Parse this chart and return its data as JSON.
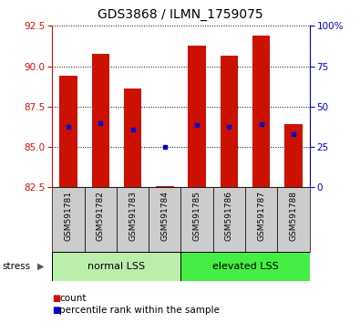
{
  "title": "GDS3868 / ILMN_1759075",
  "samples": [
    "GSM591781",
    "GSM591782",
    "GSM591783",
    "GSM591784",
    "GSM591785",
    "GSM591786",
    "GSM591787",
    "GSM591788"
  ],
  "bar_tops": [
    89.4,
    90.75,
    88.6,
    82.56,
    91.3,
    90.65,
    91.9,
    86.4
  ],
  "bar_bottom": 82.5,
  "percentile_values": [
    86.25,
    86.5,
    86.1,
    85.0,
    86.35,
    86.25,
    86.4,
    85.8
  ],
  "ylim_left": [
    82.5,
    92.5
  ],
  "yticks_left": [
    82.5,
    85.0,
    87.5,
    90.0,
    92.5
  ],
  "yticks_right_vals": [
    0,
    25,
    50,
    75,
    100
  ],
  "yticks_right_labels": [
    "0",
    "25",
    "50",
    "75",
    "100%"
  ],
  "bar_color": "#cc1100",
  "percentile_color": "#0000cc",
  "normal_lss_label": "normal LSS",
  "elevated_lss_label": "elevated LSS",
  "stress_label": "stress",
  "legend_count": "count",
  "legend_percentile": "percentile rank within the sample",
  "normal_lss_color": "#bbeeaa",
  "elevated_lss_color": "#44ee44",
  "left_axis_color": "#cc1100",
  "right_axis_color": "#0000cc",
  "label_box_color": "#cccccc",
  "bar_width": 0.55,
  "fig_width": 3.95,
  "fig_height": 3.54,
  "title_fontsize": 10
}
